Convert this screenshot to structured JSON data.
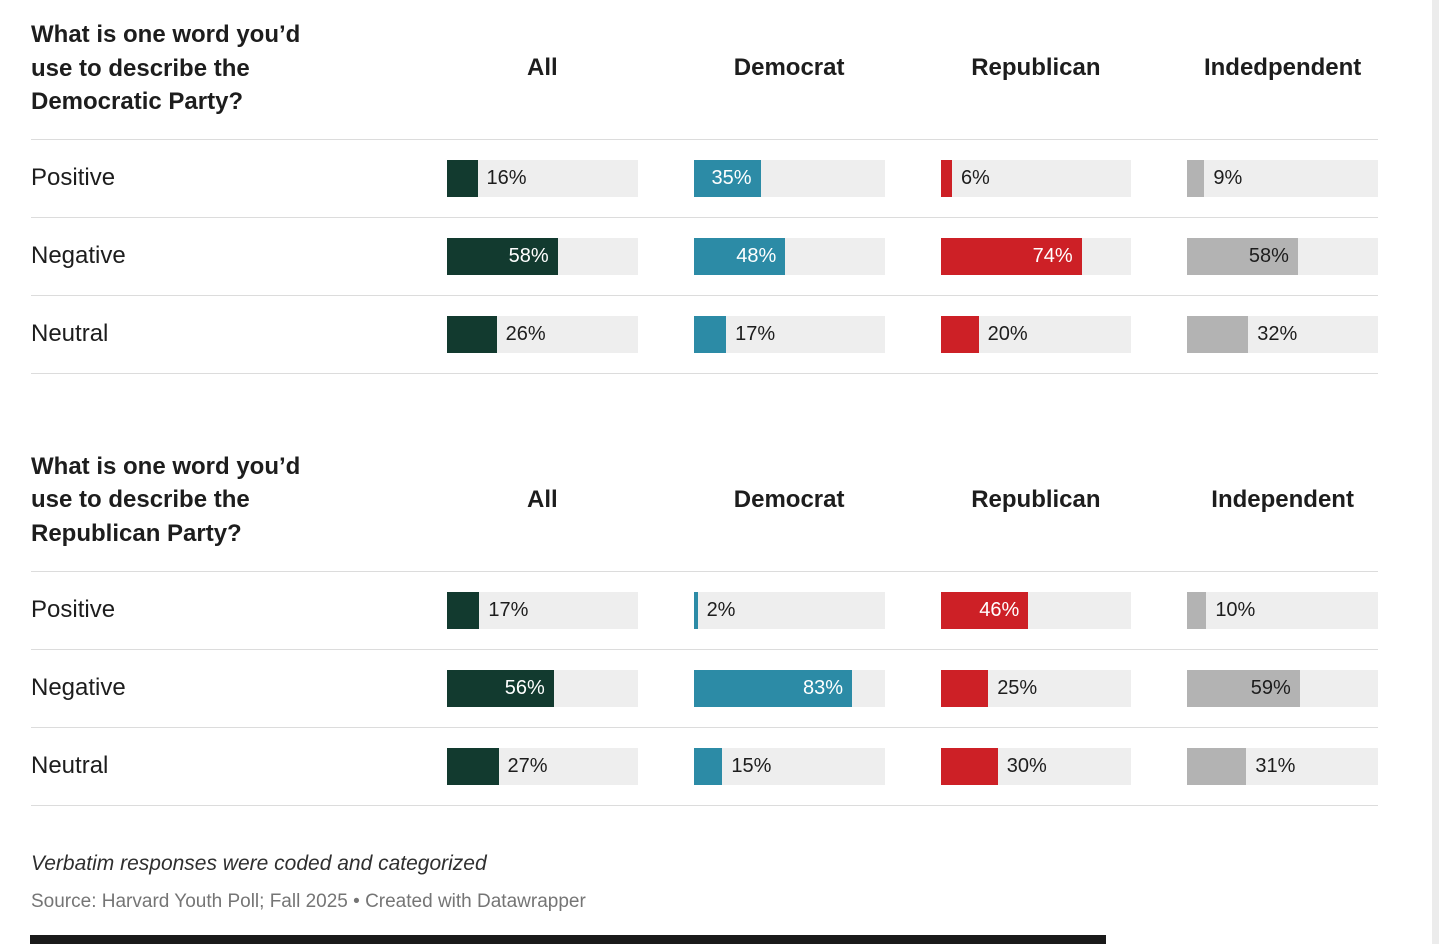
{
  "colors": {
    "all": "#123a2f",
    "democrat": "#2c8ba6",
    "republican": "#cd2026",
    "independent": "#b3b3b3",
    "track": "#eeeeee",
    "text_dark": "#1d1d1d",
    "text_light": "#ffffff"
  },
  "footer": {
    "note": "Verbatim responses were coded and categorized",
    "source": "Source: Harvard Youth Poll; Fall 2025 • Created with Datawrapper"
  },
  "chart_data": [
    {
      "type": "bar",
      "title": "What is one word you’d use to describe the Democratic Party?",
      "categories": [
        "Positive",
        "Negative",
        "Neutral"
      ],
      "value_suffix": "%",
      "xlim": [
        0,
        100
      ],
      "inside_label_threshold": 35,
      "series": [
        {
          "name": "All",
          "color_key": "all",
          "values": [
            16,
            58,
            26
          ]
        },
        {
          "name": "Democrat",
          "color_key": "democrat",
          "values": [
            35,
            48,
            17
          ]
        },
        {
          "name": "Republican",
          "color_key": "republican",
          "values": [
            6,
            74,
            20
          ]
        },
        {
          "name": "Indedpendent",
          "color_key": "independent",
          "values": [
            9,
            58,
            32
          ]
        }
      ]
    },
    {
      "type": "bar",
      "title": "What is one word you’d use to describe the Republican Party?",
      "categories": [
        "Positive",
        "Negative",
        "Neutral"
      ],
      "value_suffix": "%",
      "xlim": [
        0,
        100
      ],
      "inside_label_threshold": 35,
      "series": [
        {
          "name": "All",
          "color_key": "all",
          "values": [
            17,
            56,
            27
          ]
        },
        {
          "name": "Democrat",
          "color_key": "democrat",
          "values": [
            2,
            83,
            15
          ]
        },
        {
          "name": "Republican",
          "color_key": "republican",
          "values": [
            46,
            25,
            30
          ]
        },
        {
          "name": "Independent",
          "color_key": "independent",
          "values": [
            10,
            59,
            31
          ]
        }
      ]
    }
  ]
}
